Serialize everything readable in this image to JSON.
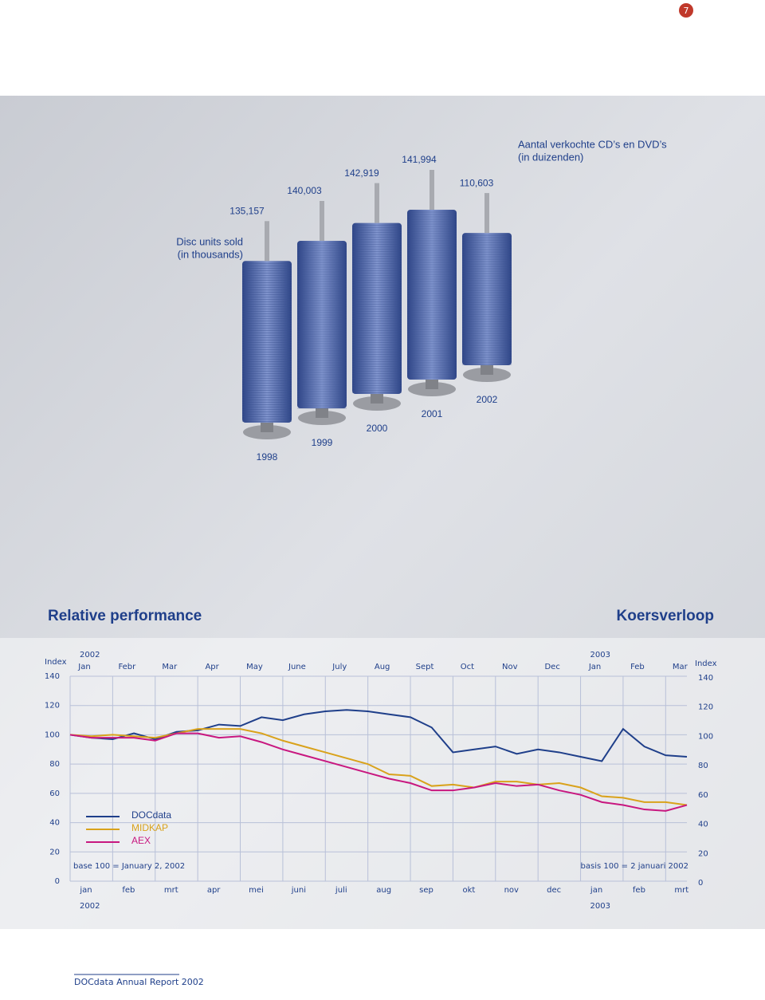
{
  "page_number": "7",
  "footer": "DOCdata Annual Report 2002",
  "chart_data": [
    {
      "type": "discs",
      "title_lines": [
        "Disc units sold",
        "(in thousands)"
      ],
      "title_nl_lines": [
        "Aantal verkochte CD’s en DVD’s",
        "(in duizenden)"
      ],
      "categories": [
        "1998",
        "1999",
        "2000",
        "2001",
        "2002"
      ],
      "values": [
        135157,
        140003,
        142919,
        141994,
        110603
      ],
      "value_labels": [
        "135,157",
        "140,003",
        "142,919",
        "141,994",
        "110,603"
      ],
      "color": "#4a5f9e"
    },
    {
      "type": "line",
      "title": "Relative performance",
      "title_nl": "Koersverloop",
      "y_label": "Index",
      "year_labels": [
        "2002",
        "2003"
      ],
      "categories": [
        "Jan",
        null,
        "Febr",
        null,
        "Mar",
        null,
        "Apr",
        null,
        "May",
        null,
        "June",
        null,
        "July",
        null,
        "Aug",
        null,
        "Sept",
        null,
        "Oct",
        null,
        "Nov",
        null,
        "Dec",
        null,
        "Jan",
        null,
        "Feb",
        null,
        "Mar",
        null
      ],
      "x_labels_nl": [
        "jan",
        null,
        "feb",
        null,
        "mrt",
        null,
        "apr",
        null,
        "mei",
        null,
        "juni",
        null,
        "juli",
        null,
        "aug",
        null,
        "sep",
        null,
        "okt",
        null,
        "nov",
        null,
        "dec",
        null,
        "jan",
        null,
        "feb",
        null,
        "mrt",
        null
      ],
      "ylim": [
        0,
        140
      ],
      "yticks": [
        0,
        20,
        40,
        60,
        80,
        100,
        120,
        140
      ],
      "grid": true,
      "series": [
        {
          "name": "DOCdata",
          "color": "#1f3f8a",
          "values": [
            100,
            98,
            97,
            101,
            97,
            102,
            103,
            107,
            106,
            112,
            110,
            114,
            116,
            117,
            116,
            114,
            112,
            105,
            88,
            90,
            92,
            87,
            90,
            88,
            85,
            82,
            104,
            92,
            86,
            85
          ]
        },
        {
          "name": "MIDKAP",
          "color": "#d9a21b",
          "values": [
            100,
            99,
            100,
            99,
            98,
            101,
            104,
            104,
            104,
            101,
            96,
            92,
            88,
            84,
            80,
            73,
            72,
            65,
            66,
            64,
            68,
            68,
            66,
            67,
            64,
            58,
            57,
            54,
            54,
            52
          ]
        },
        {
          "name": "AEX",
          "color": "#c8177f",
          "values": [
            100,
            98,
            98,
            98,
            96,
            101,
            101,
            98,
            99,
            95,
            90,
            86,
            82,
            78,
            74,
            70,
            67,
            62,
            62,
            64,
            67,
            65,
            66,
            62,
            59,
            54,
            52,
            49,
            48,
            52
          ]
        }
      ],
      "notes": [
        "base 100 = January 2, 2002",
        "basis 100 = 2 januari 2002"
      ]
    }
  ]
}
